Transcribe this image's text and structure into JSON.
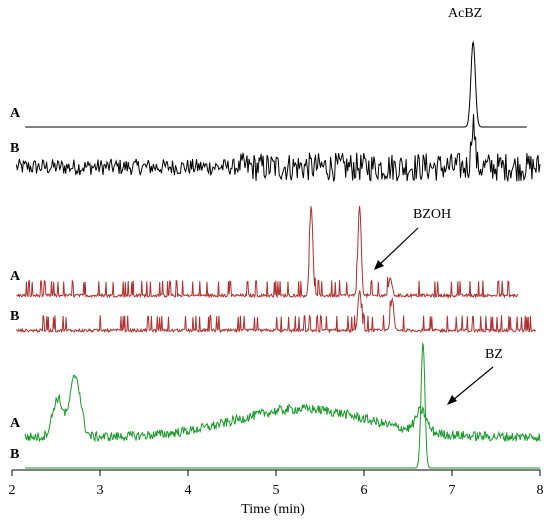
{
  "chart_data": {
    "type": "line",
    "xlabel": "Time (min)",
    "xlim": [
      2,
      8
    ],
    "x_ticks": [
      "2",
      "3",
      "4",
      "5",
      "6",
      "7",
      "8"
    ],
    "grid": false,
    "legend": "none",
    "panels": [
      {
        "id": "acbz",
        "annotation": "AcBZ",
        "color": "#000000",
        "traces": [
          {
            "label": "A",
            "peaks": [
              {
                "time": 7.24,
                "height": 1.0
              }
            ],
            "baseline_noise": 0.0
          },
          {
            "label": "B",
            "peaks": [
              {
                "time": 7.24,
                "height": 0.55
              }
            ],
            "baseline_noise": 0.9
          }
        ]
      },
      {
        "id": "bzoh",
        "annotation": "BZOH",
        "color": "#b03030",
        "traces": [
          {
            "label": "A",
            "peaks": [
              {
                "time": 5.4,
                "height": 1.0
              },
              {
                "time": 5.95,
                "height": 1.0
              },
              {
                "time": 6.3,
                "height": 0.2
              }
            ],
            "baseline_noise": 0.25
          },
          {
            "label": "B",
            "peaks": [
              {
                "time": 5.95,
                "height": 0.45
              },
              {
                "time": 6.32,
                "height": 0.35
              }
            ],
            "baseline_noise": 0.25
          }
        ]
      },
      {
        "id": "bz",
        "annotation": "BZ",
        "color": "#1a9a2a",
        "traces": [
          {
            "label": "A",
            "peaks": [
              {
                "time": 2.52,
                "height": 0.45
              },
              {
                "time": 2.72,
                "height": 0.72
              },
              {
                "time": 6.65,
                "height": 0.25
              }
            ],
            "hump": {
              "center": 5.3,
              "height": 0.33
            },
            "baseline_noise": 0.04
          },
          {
            "label": "B",
            "peaks": [
              {
                "time": 6.67,
                "height": 1.0
              }
            ],
            "baseline_noise": 0.0
          }
        ]
      }
    ]
  }
}
